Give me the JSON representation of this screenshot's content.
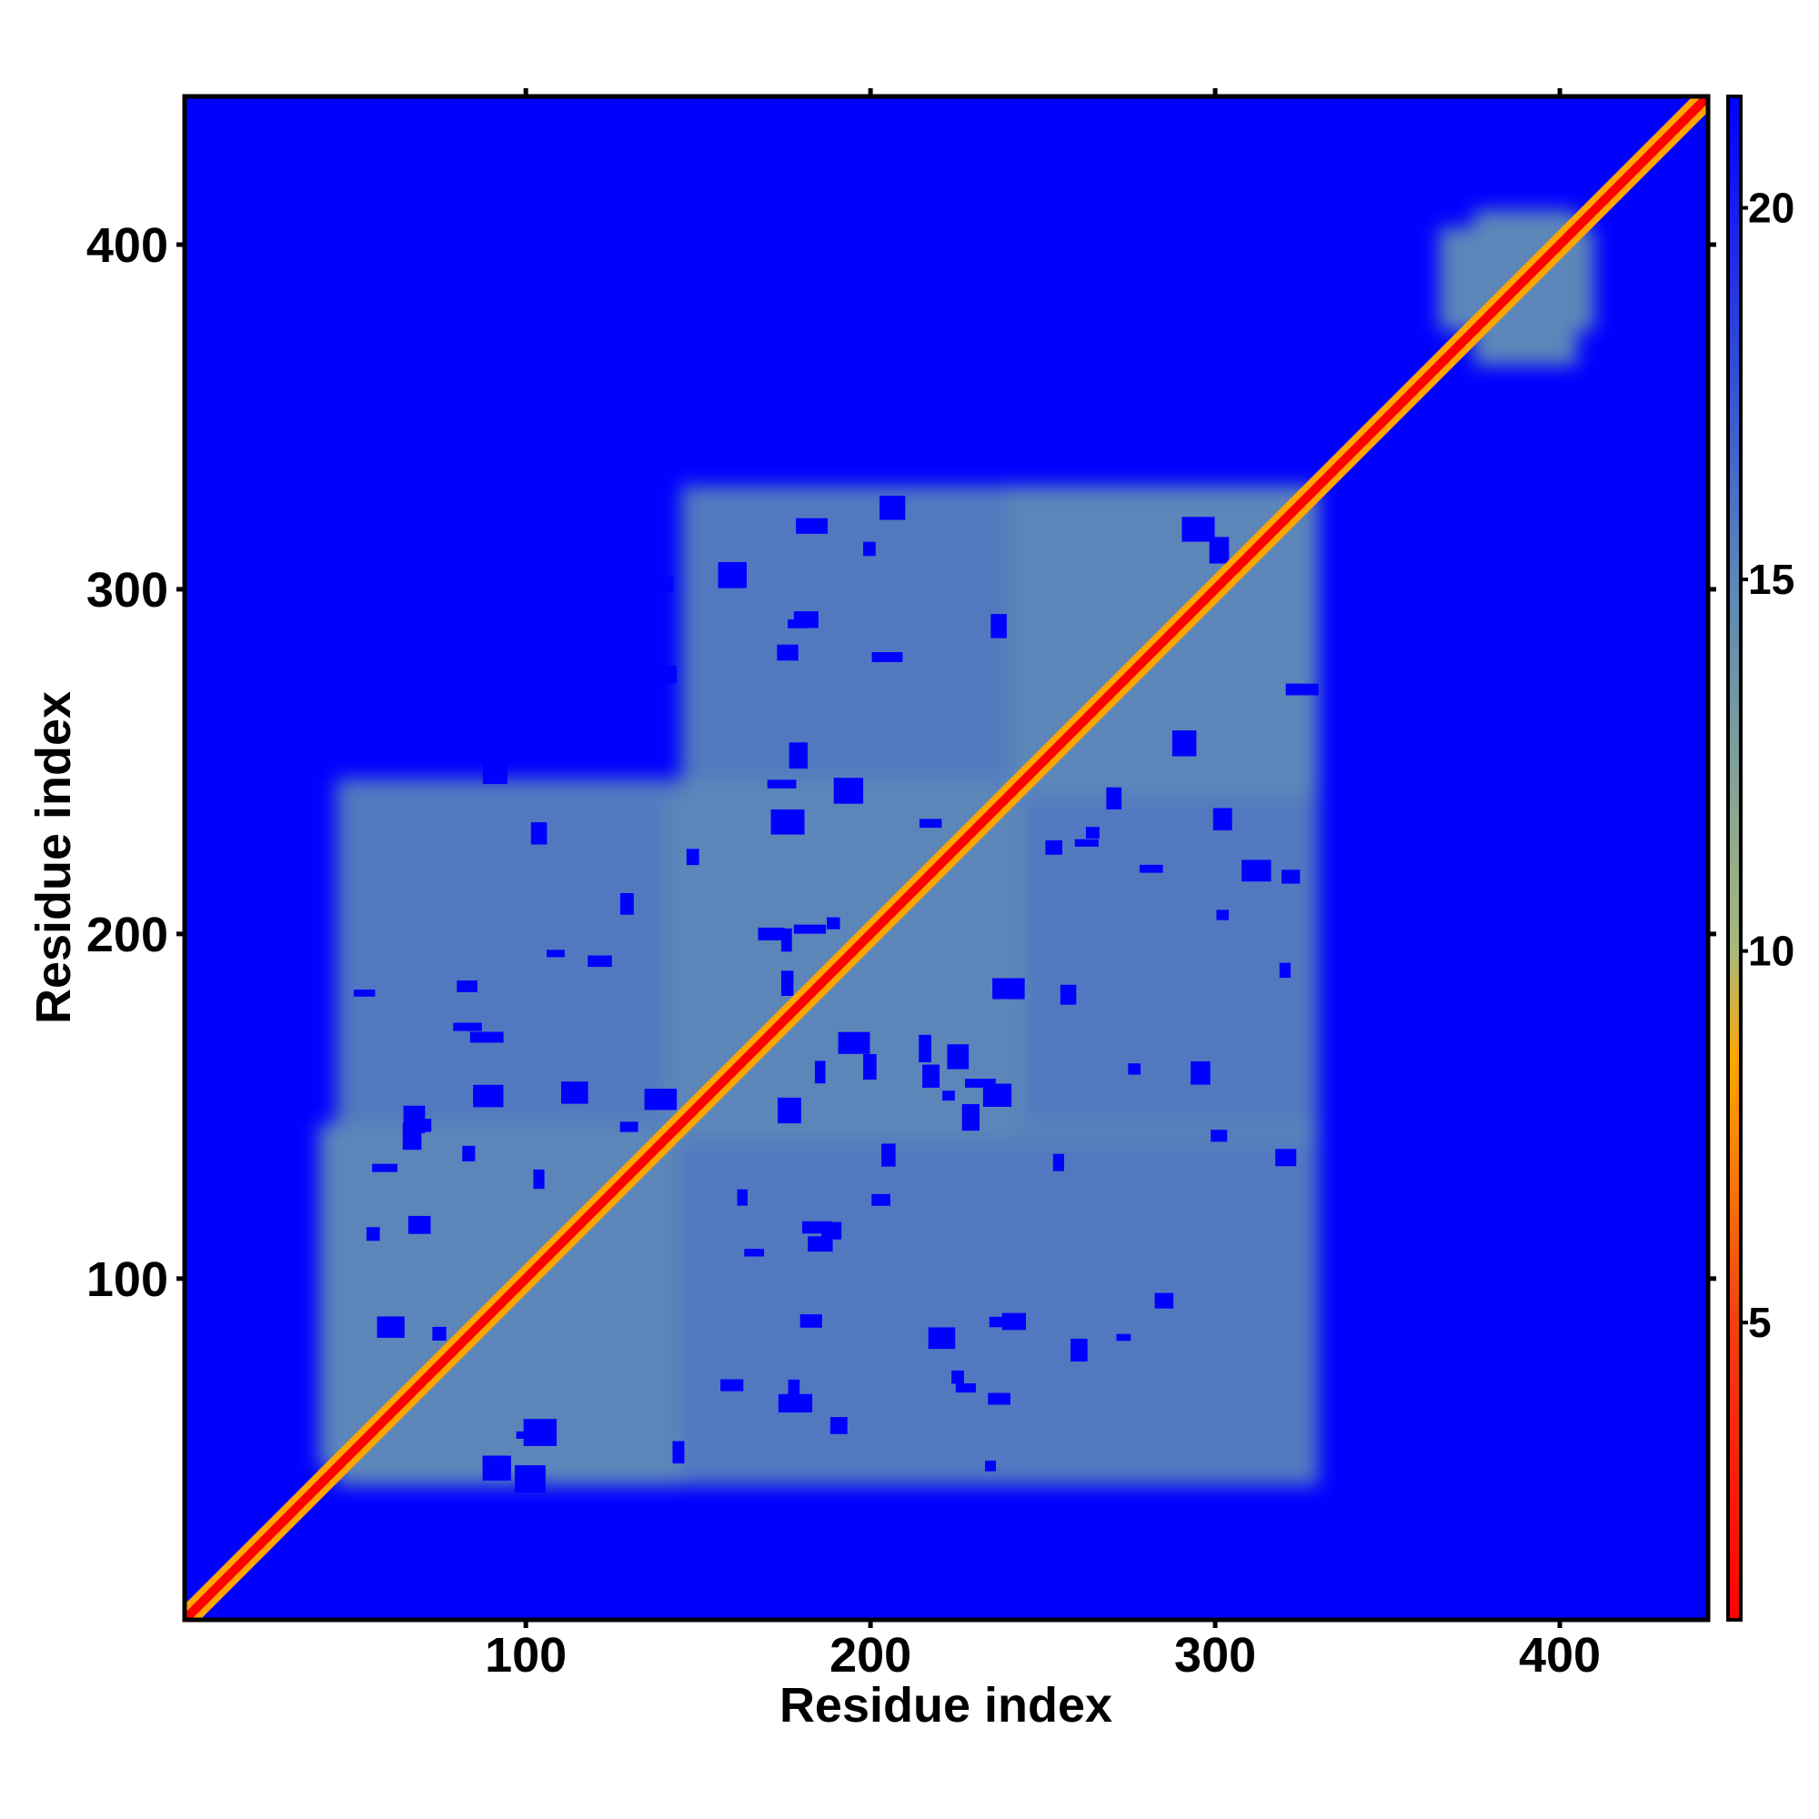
{
  "chart_data": {
    "type": "heatmap",
    "title": "",
    "xlabel": "Residue index",
    "ylabel": "Residue index",
    "xlim": [
      1,
      443
    ],
    "ylim": [
      1,
      443
    ],
    "x_ticks": [
      100,
      200,
      300,
      400
    ],
    "y_ticks": [
      100,
      200,
      300,
      400
    ],
    "colorbar": {
      "range": [
        1,
        21.5
      ],
      "ticks": [
        5,
        10,
        15,
        20
      ],
      "stops": [
        {
          "value": 1,
          "color": "#ff0000"
        },
        {
          "value": 5,
          "color": "#f04010"
        },
        {
          "value": 8.5,
          "color": "#ffa500"
        },
        {
          "value": 10,
          "color": "#a8b87a"
        },
        {
          "value": 15,
          "color": "#5a88b8"
        },
        {
          "value": 21.5,
          "color": "#0000ff"
        }
      ]
    },
    "background_color": "#0000ff",
    "contact_region_color": "#5b86b9",
    "diagonal_color": "#ff0000",
    "contact_blocks": [
      {
        "x_range": [
          45,
          145
        ],
        "y_range": [
          40,
          145
        ]
      },
      {
        "x_range": [
          145,
          240
        ],
        "y_range": [
          140,
          245
        ]
      },
      {
        "x_range": [
          240,
          330
        ],
        "y_range": [
          240,
          330
        ]
      },
      {
        "x_range": [
          375,
          405
        ],
        "y_range": [
          365,
          410
        ]
      }
    ]
  }
}
